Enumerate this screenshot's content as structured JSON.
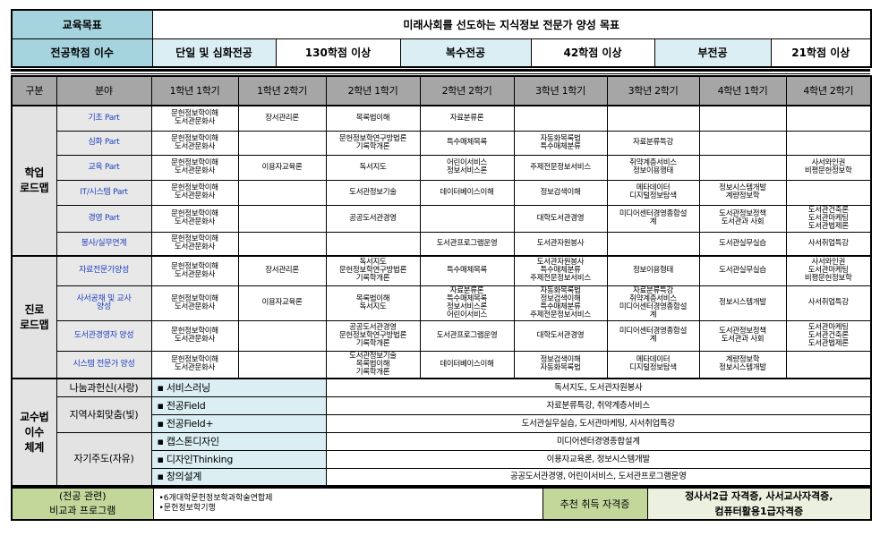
{
  "goal": {
    "label": "교육목표",
    "text": "미래사회를 선도하는 지식정보 전문가 양성 목표"
  },
  "credits": {
    "label": "전공학점 이수",
    "single_label": "단일 및 심화전공",
    "single_value": "130학점 이상",
    "double_label": "복수전공",
    "double_value": "42학점 이상",
    "minor_label": "부전공",
    "minor_value": "21학점 이상"
  },
  "header": [
    "구분",
    "분야",
    "1학년 1학기",
    "1학년 2학기",
    "2학년 1학기",
    "2학년 2학기",
    "3학년 1학기",
    "3학년 2학기",
    "4학년 1학기",
    "4학년 2학기"
  ],
  "academic": {
    "label": "학업\n로드맵",
    "rows": [
      {
        "field": "기초 Part",
        "cells": [
          "문헌정보학이해\n도서관문화사",
          "장서관리론",
          "목록법이해",
          "자료분류론",
          "",
          "",
          "",
          ""
        ]
      },
      {
        "field": "심화 Part",
        "cells": [
          "문헌정보학이해\n도서관문화사",
          "",
          "문헌정보학연구방법론\n기록학개론",
          "특수매체목록",
          "자동화목록법\n특수매체분류",
          "자료분류특강",
          "",
          ""
        ]
      },
      {
        "field": "교육 Part",
        "cells": [
          "문헌정보학이해\n도서관문화사",
          "이용자교육론",
          "독서지도",
          "어린이서비스\n정보서비스론",
          "주제전문정보서비스",
          "취약계층서비스\n정보이용행태",
          "",
          "사서와인권\n비평문헌정보학"
        ]
      },
      {
        "field": "IT/시스템 Part",
        "cells": [
          "문헌정보학이해\n도서관문화사",
          "",
          "도서관정보기술",
          "데이터베이스이해",
          "정보검색이해",
          "메타데이터\n디지털정보탐색",
          "정보시스템개발\n계량정보학",
          ""
        ]
      },
      {
        "field": "경영 Part",
        "cells": [
          "문헌정보학이해\n도서관문화사",
          "",
          "공공도서관경영",
          "",
          "대학도서관경영",
          "미디어센터경영종합설\n계",
          "도서관정보정책\n도서관과 사회",
          "도서관건축론\n도서관마케팅\n도서관법제론"
        ]
      },
      {
        "field": "봉사/실무연계",
        "cells": [
          "문헌정보학이해\n도서관문화사",
          "",
          "",
          "도서관프로그램운영",
          "도서관자원봉사",
          "",
          "도서관실무실습",
          "사서취업특강"
        ]
      }
    ]
  },
  "career": {
    "label": "진로\n로드맵",
    "rows": [
      {
        "field": "자료전문가양성",
        "cells": [
          "문헌정보학이해\n도서관문화사",
          "장서관리론",
          "독서지도\n문헌정보학연구방법론\n기록학개론",
          "특수매체목록",
          "도서관자원봉사\n특수매체분류\n주제전문정보서비스",
          "정보이용형태",
          "도서관실무실습",
          "사서와인권\n도서관마케팅\n비평문헌정보학"
        ]
      },
      {
        "field": "사서공채 및 교사\n양성",
        "cells": [
          "문헌정보학이해\n도서관문화사",
          "이용자교육론",
          "목록법이해\n독서지도",
          "자료분류론\n특수매체목록\n정보서비스론\n어린이서비스",
          "자동화목록법\n정보검색이해\n특수매체분류\n주제전문정보서비스",
          "자료분류특강\n취약계층서비스\n미디어센터경영종합설\n계",
          "정보시스템개발",
          "사서취업특강"
        ]
      },
      {
        "field": "도서관경영자 양성",
        "cells": [
          "문헌정보학이해\n도서관문화사",
          "",
          "공공도서관경영\n문헌정보학연구방법론\n기록학개론",
          "도서관프로그램운영",
          "대학도서관경영",
          "미디어센터경영종합설\n계",
          "도서관정보정책\n도서관과 사회",
          "도서관마케팅\n도서관건축론\n도서관법제론"
        ]
      },
      {
        "field": "시스템 전문가 양성",
        "cells": [
          "문헌정보학이해\n도서관문화사",
          "",
          "도서관정보기술\n목록법이해\n기록학개론",
          "데이터베이스이해",
          "정보검색이해\n자동화목록법",
          "메타데이터\n디지털정보탐색",
          "계량정보학\n정보시스템개발",
          ""
        ]
      }
    ]
  },
  "teaching": {
    "label": "교수법\n이수\n체계",
    "groups": [
      {
        "category": "나눔과헌신(사랑)",
        "items": [
          {
            "method": "▪ 서비스러닝",
            "courses": "독서지도, 도서관자원봉사"
          }
        ]
      },
      {
        "category": "지역사회맞춤(빛)",
        "items": [
          {
            "method": "▪ 전공Field",
            "courses": "자료분류특강, 취약계층서비스"
          },
          {
            "method": "▪ 전공Field+",
            "courses": "도서관실무실습, 도서관마케팅, 사서취업특강"
          }
        ]
      },
      {
        "category": "자기주도(자유)",
        "items": [
          {
            "method": "▪ 캡스톤디자인",
            "courses": "미디어센터경영종합설계"
          },
          {
            "method": "▪ 디자인Thinking",
            "courses": "이용자교육론, 정보시스템개발"
          },
          {
            "method": "▪ 창의설계",
            "courses": "공공도서관경영, 어린이서비스, 도서관프로그램운영"
          }
        ]
      }
    ]
  },
  "extracurricular": {
    "label": "(전공 관련)\n비교과 프로그램",
    "items": "•6개대학문헌정보학과학술연합제\n•문헌정보학기행",
    "cert_label": "추천 취득 자격증",
    "certs": "정사서2급 자격증, 사서교사자격증,\n컴퓨터활용1급자격증"
  },
  "colors": {
    "teal": "#a5d3de",
    "light_teal": "#dbeef3",
    "header_grey": "#a6a6a6",
    "field_text": "#1f3fbf",
    "green": "#c4d79b"
  }
}
